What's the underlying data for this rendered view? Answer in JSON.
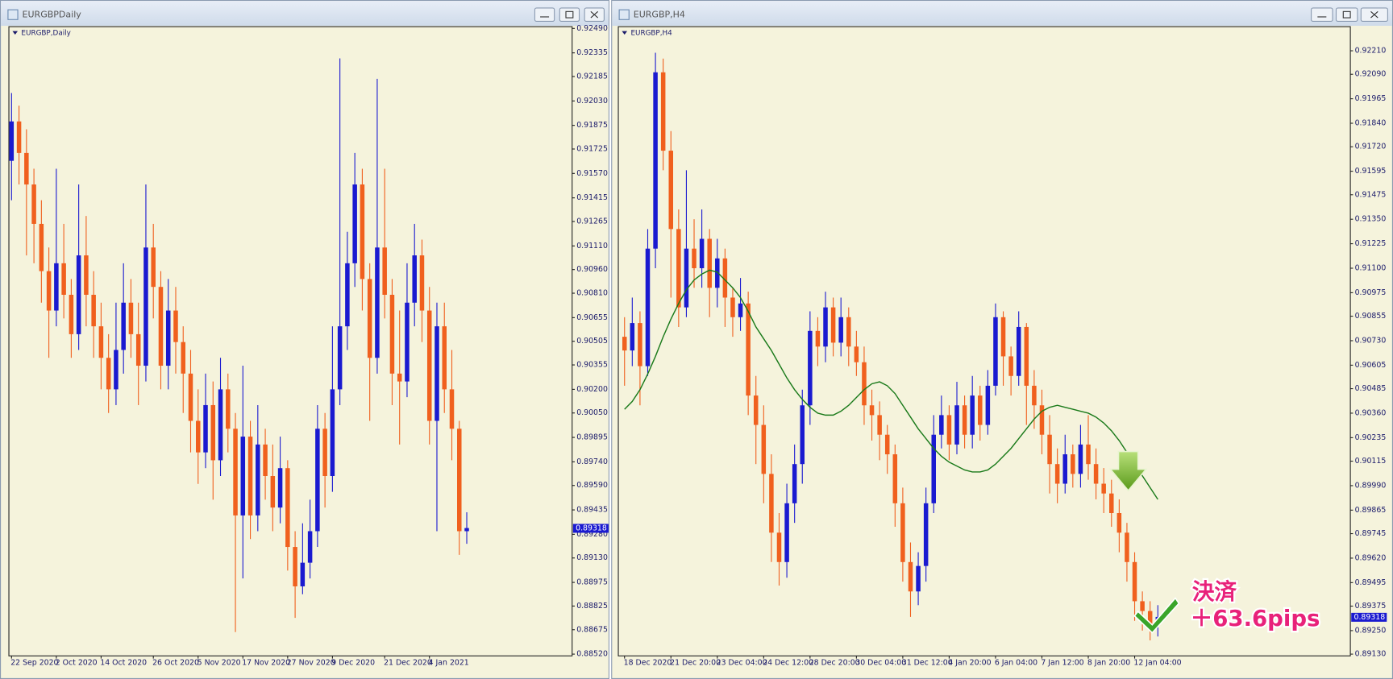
{
  "chart_data": [
    {
      "type": "candlestick",
      "window_title": "EURGBPDaily",
      "title": "EURGBP,Daily",
      "up_color": "#1a1ad0",
      "down_color": "#f0601e",
      "categories": [
        "22 Sep 2020",
        null,
        null,
        null,
        null,
        null,
        "2 Oct 2020",
        null,
        null,
        null,
        null,
        null,
        "14 Oct 2020",
        null,
        null,
        null,
        null,
        null,
        null,
        "26 Oct 2020",
        null,
        null,
        null,
        null,
        null,
        "5 Nov 2020",
        null,
        null,
        null,
        null,
        null,
        "17 Nov 2020",
        null,
        null,
        null,
        null,
        null,
        "27 Nov 2020",
        null,
        null,
        null,
        null,
        null,
        "9 Dec 2020",
        null,
        null,
        null,
        null,
        null,
        null,
        "21 Dec 2020",
        null,
        null,
        null,
        null,
        null,
        "4 Jan 2021",
        null,
        null,
        null,
        null,
        null
      ],
      "open": [
        0.9165,
        0.919,
        0.917,
        0.915,
        0.9125,
        0.9095,
        0.907,
        0.91,
        0.908,
        0.9055,
        0.9105,
        0.908,
        0.906,
        0.904,
        0.902,
        0.9045,
        0.9075,
        0.9055,
        0.9035,
        0.911,
        0.9085,
        0.9035,
        0.907,
        0.905,
        0.903,
        0.9,
        0.898,
        0.901,
        0.8975,
        0.902,
        0.8995,
        0.894,
        0.899,
        0.894,
        0.8985,
        0.8965,
        0.8945,
        0.897,
        0.892,
        0.8895,
        0.891,
        0.893,
        0.8995,
        0.8965,
        0.902,
        0.906,
        0.91,
        0.915,
        0.909,
        0.904,
        0.911,
        0.908,
        0.903,
        0.9025,
        0.9075,
        0.9105,
        0.907,
        0.9,
        0.906,
        0.902,
        0.8995,
        0.893
      ],
      "high": [
        0.9208,
        0.92,
        0.9185,
        0.916,
        0.914,
        0.911,
        0.916,
        0.9125,
        0.909,
        0.915,
        0.913,
        0.9095,
        0.9075,
        0.9055,
        0.9075,
        0.91,
        0.909,
        0.9075,
        0.915,
        0.9125,
        0.9095,
        0.909,
        0.9085,
        0.906,
        0.9045,
        0.902,
        0.903,
        0.9025,
        0.904,
        0.903,
        0.9005,
        0.9035,
        0.9,
        0.901,
        0.8995,
        0.8985,
        0.899,
        0.8975,
        0.893,
        0.8935,
        0.895,
        0.901,
        0.9005,
        0.906,
        0.923,
        0.912,
        0.917,
        0.916,
        0.91,
        0.9217,
        0.916,
        0.909,
        0.907,
        0.91,
        0.9125,
        0.9115,
        0.9085,
        0.9075,
        0.9075,
        0.9045,
        0.9,
        0.8942
      ],
      "low": [
        0.914,
        0.915,
        0.9105,
        0.91,
        0.9075,
        0.904,
        0.906,
        0.9065,
        0.904,
        0.9045,
        0.906,
        0.904,
        0.902,
        0.9005,
        0.901,
        0.903,
        0.904,
        0.901,
        0.9025,
        0.9065,
        0.902,
        0.902,
        0.903,
        0.9005,
        0.898,
        0.896,
        0.897,
        0.895,
        0.8965,
        0.898,
        0.8866,
        0.89,
        0.8925,
        0.893,
        0.895,
        0.893,
        0.8935,
        0.8905,
        0.8875,
        0.889,
        0.89,
        0.892,
        0.8945,
        0.8955,
        0.901,
        0.9045,
        0.9085,
        0.907,
        0.9,
        0.903,
        0.9065,
        0.901,
        0.8985,
        0.9015,
        0.906,
        0.905,
        0.8985,
        0.893,
        0.9005,
        0.8975,
        0.8915,
        0.8922
      ],
      "close": [
        0.919,
        0.917,
        0.915,
        0.9125,
        0.9095,
        0.907,
        0.91,
        0.908,
        0.9055,
        0.9105,
        0.908,
        0.906,
        0.904,
        0.902,
        0.9045,
        0.9075,
        0.9055,
        0.9035,
        0.911,
        0.9085,
        0.9035,
        0.907,
        0.905,
        0.903,
        0.9,
        0.898,
        0.901,
        0.8975,
        0.902,
        0.8995,
        0.894,
        0.899,
        0.894,
        0.8985,
        0.8965,
        0.8945,
        0.897,
        0.892,
        0.8895,
        0.891,
        0.893,
        0.8995,
        0.8965,
        0.902,
        0.906,
        0.91,
        0.915,
        0.909,
        0.904,
        0.911,
        0.908,
        0.903,
        0.9025,
        0.9075,
        0.9105,
        0.907,
        0.9,
        0.906,
        0.902,
        0.8995,
        0.893,
        0.8932
      ],
      "ylim": [
        0.8852,
        0.9249
      ],
      "yticks": [
        {
          "value": 0.9249,
          "label": "0.92490"
        },
        0.92335,
        0.92185,
        {
          "value": 0.9203,
          "label": "0.92030"
        },
        0.91875,
        0.91725,
        {
          "value": 0.9157,
          "label": "0.91570"
        },
        0.91415,
        0.91265,
        {
          "value": 0.9111,
          "label": "0.91110"
        },
        {
          "value": 0.9096,
          "label": "0.90960"
        },
        {
          "value": 0.9081,
          "label": "0.90810"
        },
        0.90655,
        0.90505,
        0.90355,
        {
          "value": 0.902,
          "label": "0.90200"
        },
        {
          "value": 0.9005,
          "label": "0.90050"
        },
        0.89895,
        {
          "value": 0.8974,
          "label": "0.89740"
        },
        {
          "value": 0.8959,
          "label": "0.89590"
        },
        0.89435,
        {
          "value": 0.8928,
          "label": "0.89280"
        },
        {
          "value": 0.8913,
          "label": "0.89130"
        },
        0.88975,
        0.88825,
        0.88675,
        {
          "value": 0.8852,
          "label": "0.88520"
        }
      ],
      "current_price": 0.89318
    },
    {
      "type": "candlestick",
      "window_title": "EURGBP,H4",
      "title": "EURGBP,H4",
      "up_color": "#1a1ad0",
      "down_color": "#f0601e",
      "categories": [
        "18 Dec 2020",
        null,
        null,
        null,
        null,
        null,
        "21 Dec 20:00",
        null,
        null,
        null,
        null,
        null,
        "23 Dec 04:00",
        null,
        null,
        null,
        null,
        null,
        "24 Dec 12:00",
        null,
        null,
        null,
        null,
        null,
        "28 Dec 20:00",
        null,
        null,
        null,
        null,
        null,
        "30 Dec 04:00",
        null,
        null,
        null,
        null,
        null,
        "31 Dec 12:00",
        null,
        null,
        null,
        null,
        null,
        "4 Jan 20:00",
        null,
        null,
        null,
        null,
        null,
        "6 Jan 04:00",
        null,
        null,
        null,
        null,
        null,
        "7 Jan 12:00",
        null,
        null,
        null,
        null,
        null,
        "8 Jan 20:00",
        null,
        null,
        null,
        null,
        null,
        "12 Jan 04:00",
        null,
        null,
        null
      ],
      "open": [
        0.9075,
        0.9068,
        0.9082,
        0.906,
        0.912,
        0.921,
        0.917,
        0.913,
        0.909,
        0.912,
        0.911,
        0.9125,
        0.91,
        0.9115,
        0.9095,
        0.9085,
        0.9092,
        0.9045,
        0.903,
        0.9005,
        0.8975,
        0.896,
        0.899,
        0.901,
        0.904,
        0.9078,
        0.907,
        0.909,
        0.9072,
        0.9085,
        0.907,
        0.9062,
        0.904,
        0.9035,
        0.9025,
        0.9015,
        0.899,
        0.896,
        0.8945,
        0.8958,
        0.899,
        0.9025,
        0.9035,
        0.902,
        0.904,
        0.9025,
        0.9045,
        0.903,
        0.905,
        0.9085,
        0.9065,
        0.9055,
        0.908,
        0.905,
        0.904,
        0.9025,
        0.901,
        0.9,
        0.9015,
        0.9005,
        0.902,
        0.901,
        0.9,
        0.8995,
        0.8985,
        0.8975,
        0.896,
        0.894,
        0.8935,
        0.8928
      ],
      "high": [
        0.9085,
        0.9095,
        0.9088,
        0.913,
        0.922,
        0.9217,
        0.918,
        0.914,
        0.916,
        0.9135,
        0.914,
        0.913,
        0.9125,
        0.912,
        0.91,
        0.9105,
        0.9098,
        0.9055,
        0.904,
        0.9015,
        0.8985,
        0.9,
        0.902,
        0.9048,
        0.9088,
        0.9085,
        0.9098,
        0.9095,
        0.9095,
        0.909,
        0.9078,
        0.907,
        0.9048,
        0.9042,
        0.903,
        0.902,
        0.8998,
        0.897,
        0.8965,
        0.8998,
        0.9035,
        0.9045,
        0.904,
        0.9052,
        0.9045,
        0.9055,
        0.905,
        0.9058,
        0.9092,
        0.9088,
        0.907,
        0.9088,
        0.9082,
        0.9058,
        0.9048,
        0.9035,
        0.9018,
        0.9025,
        0.902,
        0.903,
        0.9035,
        0.9018,
        0.9008,
        0.9002,
        0.8992,
        0.898,
        0.8965,
        0.8945,
        0.894,
        0.8938
      ],
      "low": [
        0.905,
        0.906,
        0.904,
        0.9055,
        0.911,
        0.916,
        0.9095,
        0.908,
        0.9085,
        0.91,
        0.91,
        0.9085,
        0.909,
        0.908,
        0.9075,
        0.9078,
        0.9035,
        0.901,
        0.899,
        0.896,
        0.8948,
        0.8952,
        0.898,
        0.9,
        0.903,
        0.906,
        0.9062,
        0.9065,
        0.9065,
        0.906,
        0.9055,
        0.903,
        0.9022,
        0.9012,
        0.9005,
        0.8978,
        0.895,
        0.8932,
        0.8938,
        0.895,
        0.8985,
        0.9018,
        0.9012,
        0.9015,
        0.9018,
        0.9018,
        0.9022,
        0.9025,
        0.9045,
        0.905,
        0.9045,
        0.905,
        0.903,
        0.9028,
        0.9015,
        0.8995,
        0.899,
        0.8995,
        0.8998,
        0.8998,
        0.9002,
        0.8992,
        0.8985,
        0.8978,
        0.8965,
        0.895,
        0.893,
        0.8925,
        0.892,
        0.8922
      ],
      "close": [
        0.9068,
        0.9082,
        0.906,
        0.912,
        0.921,
        0.917,
        0.913,
        0.909,
        0.912,
        0.911,
        0.9125,
        0.91,
        0.9115,
        0.9095,
        0.9085,
        0.9092,
        0.9045,
        0.903,
        0.9005,
        0.8975,
        0.896,
        0.899,
        0.901,
        0.904,
        0.9078,
        0.907,
        0.909,
        0.9072,
        0.9085,
        0.907,
        0.9062,
        0.904,
        0.9035,
        0.9025,
        0.9015,
        0.899,
        0.896,
        0.8945,
        0.8958,
        0.899,
        0.9025,
        0.9035,
        0.902,
        0.904,
        0.9025,
        0.9045,
        0.903,
        0.905,
        0.9085,
        0.9065,
        0.9055,
        0.908,
        0.905,
        0.904,
        0.9025,
        0.901,
        0.9,
        0.9015,
        0.9005,
        0.902,
        0.901,
        0.9,
        0.8995,
        0.8985,
        0.8975,
        0.896,
        0.894,
        0.8935,
        0.8928,
        0.8932
      ],
      "ma": {
        "color": "#1a7a1a",
        "values": [
          0.9038,
          0.9042,
          0.9048,
          0.9056,
          0.9065,
          0.9075,
          0.9084,
          0.9092,
          0.9099,
          0.9104,
          0.9107,
          0.9109,
          0.9108,
          0.9104,
          0.91,
          0.9095,
          0.9088,
          0.908,
          0.9074,
          0.9068,
          0.9061,
          0.9054,
          0.9048,
          0.9043,
          0.9039,
          0.9036,
          0.9035,
          0.9035,
          0.9037,
          0.904,
          0.9044,
          0.9048,
          0.9051,
          0.9052,
          0.905,
          0.9046,
          0.904,
          0.9034,
          0.9028,
          0.9023,
          0.9018,
          0.9014,
          0.9011,
          0.9009,
          0.9007,
          0.9006,
          0.9006,
          0.9007,
          0.901,
          0.9014,
          0.9018,
          0.9023,
          0.9028,
          0.9033,
          0.9037,
          0.9039,
          0.904,
          0.9039,
          0.9038,
          0.9037,
          0.9036,
          0.9034,
          0.9031,
          0.9027,
          0.9022,
          0.9016,
          0.901,
          0.9004,
          0.8998,
          0.8992
        ]
      },
      "ylim": [
        0.8913,
        0.92324
      ],
      "yticks": [
        {
          "value": 0.9221,
          "label": "0.92210"
        },
        {
          "value": 0.9209,
          "label": "0.92090"
        },
        0.91965,
        {
          "value": 0.9184,
          "label": "0.91840"
        },
        {
          "value": 0.9172,
          "label": "0.91720"
        },
        0.91595,
        0.91475,
        {
          "value": 0.9135,
          "label": "0.91350"
        },
        0.91225,
        {
          "value": 0.911,
          "label": "0.91100"
        },
        0.90975,
        0.90855,
        {
          "value": 0.9073,
          "label": "0.90730"
        },
        0.90605,
        0.90485,
        {
          "value": 0.9036,
          "label": "0.90360"
        },
        0.90235,
        0.90115,
        {
          "value": 0.8999,
          "label": "0.89990"
        },
        0.89865,
        0.89745,
        {
          "value": 0.8962,
          "label": "0.89620"
        },
        0.89495,
        0.89375,
        {
          "value": 0.8925,
          "label": "0.89250"
        },
        {
          "value": 0.8913,
          "label": "0.89130"
        }
      ],
      "current_price": 0.89318,
      "annotations": [
        "決済",
        "＋63.6pips"
      ]
    }
  ]
}
